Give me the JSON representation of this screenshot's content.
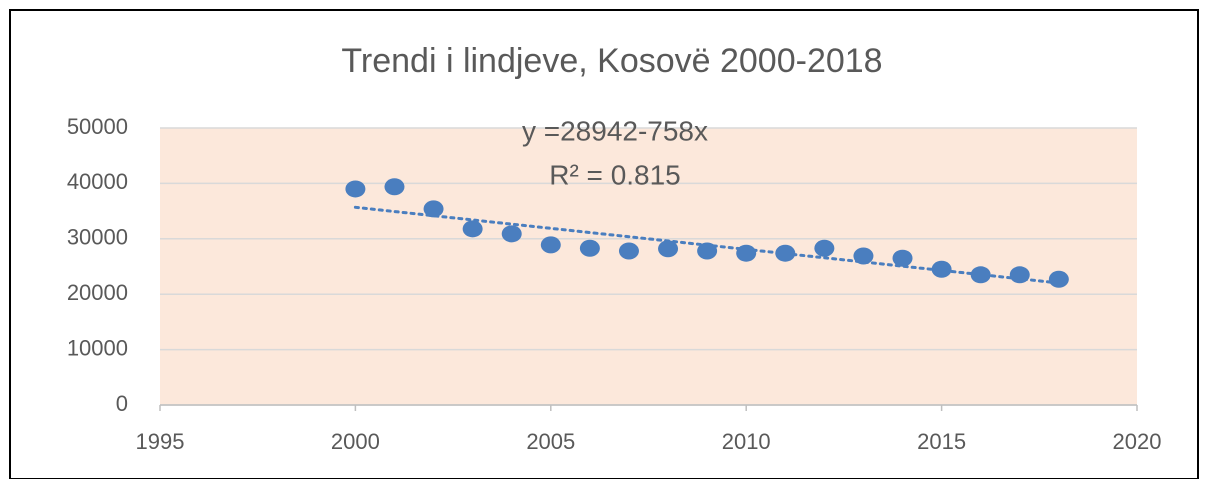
{
  "chart_data": {
    "type": "scatter",
    "title": "Trendi i lindjeve, Kosovë 2000-2018",
    "annotations": [
      "y =28942-758x",
      "R² = 0.815"
    ],
    "x": [
      2000,
      2001,
      2002,
      2003,
      2004,
      2005,
      2006,
      2007,
      2008,
      2009,
      2010,
      2011,
      2012,
      2013,
      2014,
      2015,
      2016,
      2017,
      2018
    ],
    "values": [
      39000,
      39400,
      35400,
      31800,
      30900,
      28900,
      28300,
      27800,
      28200,
      27800,
      27400,
      27400,
      28300,
      26900,
      26500,
      24500,
      23500,
      23500,
      22700
    ],
    "color": "#4a7ebf",
    "xlim": [
      1995,
      2020
    ],
    "xticks": [
      1995,
      2000,
      2005,
      2010,
      2015,
      2020
    ],
    "ylim": [
      0,
      50000
    ],
    "yticks": [
      0,
      10000,
      20000,
      30000,
      40000,
      50000
    ],
    "grid": true,
    "trendline": true
  }
}
